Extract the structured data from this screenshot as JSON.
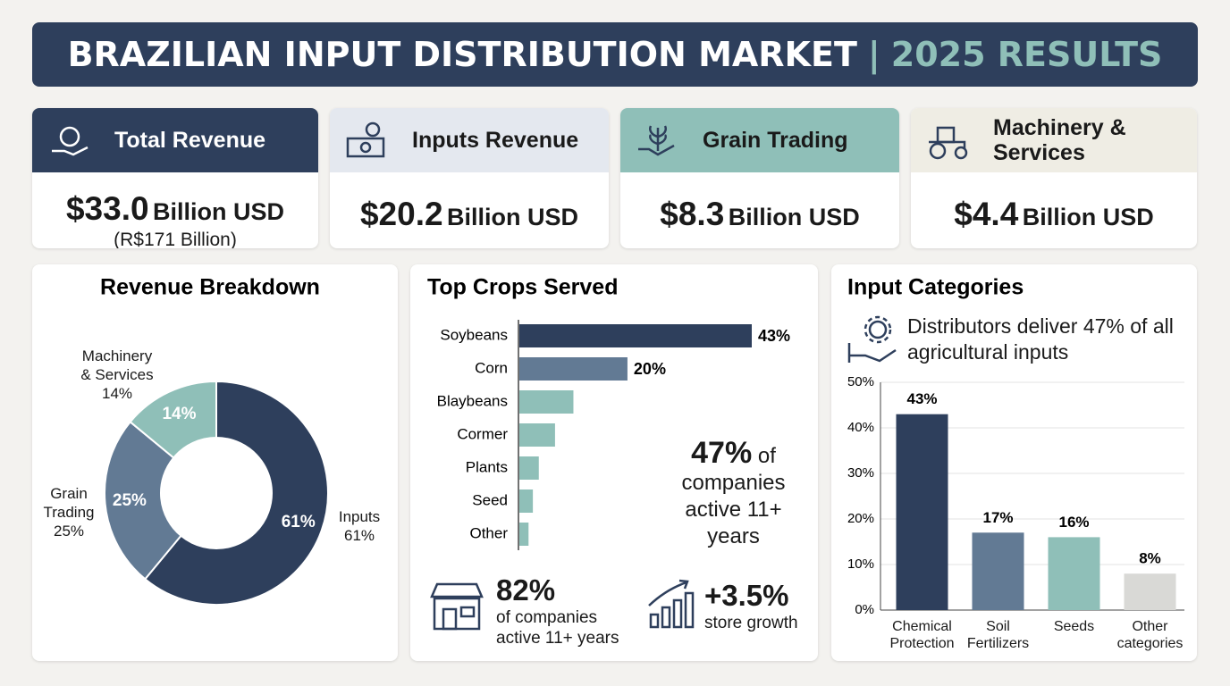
{
  "header": {
    "title": "BRAZILIAN INPUT DISTRIBUTION MARKET",
    "separator": "|",
    "subtitle": "2025 RESULTS"
  },
  "kpis": [
    {
      "title": "Total Revenue",
      "value": "$33.0",
      "unit": "Billion USD",
      "note": "(R$171 Billion)"
    },
    {
      "title": "Inputs Revenue",
      "value": "$20.2",
      "unit": "Billion USD"
    },
    {
      "title": "Grain Trading",
      "value": "$8.3",
      "unit": "Billion USD"
    },
    {
      "title": "Machinery & Services",
      "value": "$4.4",
      "unit": "Billion USD"
    }
  ],
  "chart_data": [
    {
      "type": "donut",
      "title": "Revenue Breakdown",
      "categories": [
        "Inputs",
        "Grain Trading",
        "Machinery & Services"
      ],
      "values": [
        61,
        25,
        14
      ],
      "value_labels": [
        "61%",
        "25%",
        "14%"
      ],
      "colors": [
        "#2e3f5c",
        "#627a94",
        "#8fbfb8"
      ]
    },
    {
      "type": "hbar",
      "title": "Top Crops Served",
      "categories": [
        "Soybeans",
        "Corn",
        "Blaybeans",
        "Cormer",
        "Plants",
        "Seed",
        "Other"
      ],
      "values": [
        43,
        20,
        10,
        6.6,
        3.6,
        2.5,
        1.7
      ],
      "value_labels": [
        "43%",
        "20%",
        null,
        null,
        null,
        null,
        null
      ],
      "colors": [
        "#2e3f5c",
        "#627a94",
        "#8fbfb8",
        "#8fbfb8",
        "#8fbfb8",
        "#8fbfb8",
        "#8fbfb8"
      ],
      "annotations": [
        {
          "value": "47%",
          "text": "of companies active 11+ years"
        },
        {
          "value": "82%",
          "text": "of companies active 11+ years"
        },
        {
          "value": "+3.5%",
          "text": "store growth"
        }
      ]
    },
    {
      "type": "bar",
      "title": "Input Categories",
      "subtitle": "Distributors deliver 47% of all agricultural inputs",
      "categories": [
        "Chemical Protection",
        "Soil Fertilizers",
        "Seeds",
        "Other categories"
      ],
      "values": [
        43,
        17,
        16,
        8
      ],
      "value_labels": [
        "43%",
        "17%",
        "16%",
        "8%"
      ],
      "colors": [
        "#2e3f5c",
        "#627a94",
        "#8fbfb8",
        "#d9d9d6"
      ],
      "ylim": [
        0,
        50
      ],
      "yticks": [
        {
          "value": 0,
          "label": "0%"
        },
        {
          "value": 10,
          "label": "10%"
        },
        {
          "value": 20,
          "label": "20%"
        },
        {
          "value": 30,
          "label": "30%"
        },
        {
          "value": 40,
          "label": "40%"
        },
        {
          "value": 50,
          "label": "50%"
        }
      ],
      "grid": true
    }
  ]
}
